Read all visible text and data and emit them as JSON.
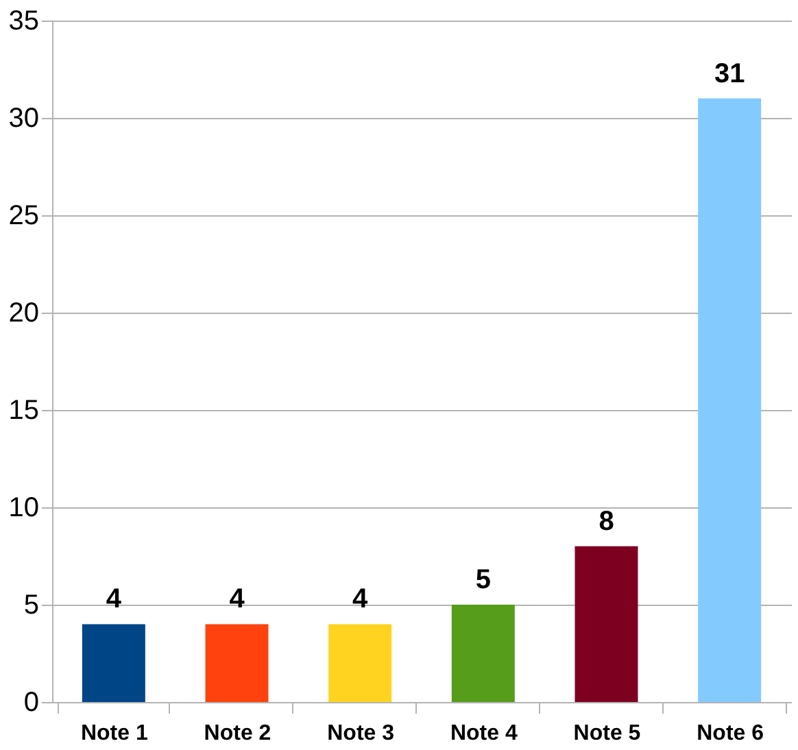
{
  "chart_data": {
    "type": "bar",
    "categories": [
      "Note 1",
      "Note 2",
      "Note 3",
      "Note 4",
      "Note 5",
      "Note 6"
    ],
    "values": [
      4,
      4,
      4,
      5,
      8,
      31
    ],
    "colors": [
      "#004586",
      "#ff420e",
      "#ffd320",
      "#579d1c",
      "#7e0021",
      "#83caff"
    ],
    "ylim": [
      0,
      35
    ],
    "yticks": [
      0,
      5,
      10,
      15,
      20,
      25,
      30,
      35
    ],
    "grid": "y",
    "data_labels": true,
    "legend": false
  }
}
